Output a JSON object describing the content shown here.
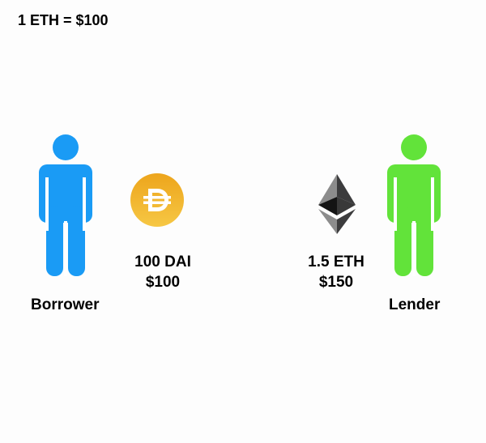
{
  "header": {
    "exchange_rate": "1 ETH = $100"
  },
  "borrower": {
    "label": "Borrower",
    "color": "#1a9bf5",
    "icon": "person-icon"
  },
  "lender": {
    "label": "Lender",
    "color": "#62e33a",
    "icon": "person-icon"
  },
  "dai": {
    "icon": "dai-coin-icon",
    "amount": "100 DAI",
    "value": "$100",
    "color": "#f2b33a"
  },
  "eth": {
    "icon": "ethereum-icon",
    "amount": "1.5 ETH",
    "value": "$150",
    "color": "#3c3c3d"
  }
}
